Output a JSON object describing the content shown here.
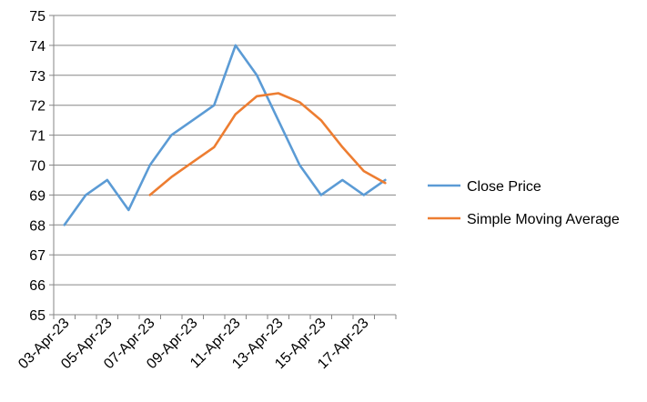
{
  "chart_data": {
    "type": "line",
    "title": "",
    "xlabel": "",
    "ylabel": "",
    "ylim": [
      65,
      75
    ],
    "yticks": [
      "65",
      "66",
      "67",
      "68",
      "69",
      "70",
      "71",
      "72",
      "73",
      "74",
      "75"
    ],
    "grid": "horizontal",
    "legend": "right",
    "categories": [
      "03-Apr-23",
      "04-Apr-23",
      "05-Apr-23",
      "06-Apr-23",
      "07-Apr-23",
      "08-Apr-23",
      "09-Apr-23",
      "10-Apr-23",
      "11-Apr-23",
      "12-Apr-23",
      "13-Apr-23",
      "14-Apr-23",
      "15-Apr-23",
      "16-Apr-23",
      "17-Apr-23",
      "18-Apr-23"
    ],
    "xtick_labels": [
      "03-Apr-23",
      "05-Apr-23",
      "07-Apr-23",
      "09-Apr-23",
      "11-Apr-23",
      "13-Apr-23",
      "15-Apr-23",
      "17-Apr-23"
    ],
    "series": [
      {
        "name": "Close Price",
        "color": "#5B9BD5",
        "values": [
          68,
          69,
          69.5,
          68.5,
          70,
          71,
          71.5,
          72,
          74,
          73,
          71.5,
          70,
          69,
          69.5,
          69,
          69.5
        ]
      },
      {
        "name": "Simple Moving Average",
        "color": "#ED7D31",
        "values": [
          null,
          null,
          null,
          null,
          69.0,
          69.6,
          70.1,
          70.6,
          71.7,
          72.3,
          72.4,
          72.1,
          71.5,
          70.6,
          69.8,
          69.4
        ]
      }
    ]
  }
}
